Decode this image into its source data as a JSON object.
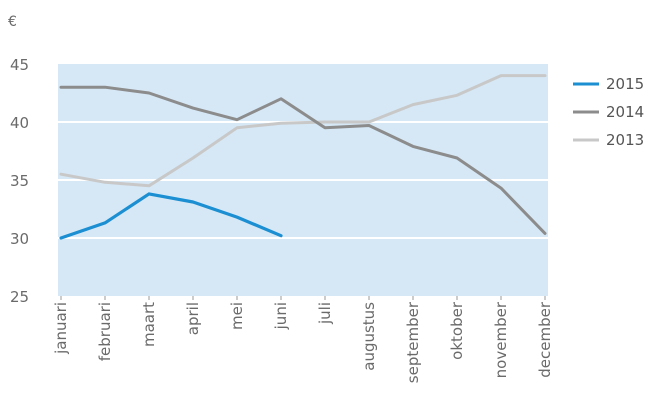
{
  "chart_data": {
    "type": "line",
    "unit": "€",
    "categories": [
      "januari",
      "februari",
      "maart",
      "april",
      "mei",
      "juni",
      "juli",
      "augustus",
      "september",
      "oktober",
      "november",
      "december"
    ],
    "ylim": [
      25,
      45
    ],
    "yticks": [
      "25",
      "30",
      "35",
      "40",
      "45"
    ],
    "grid": true,
    "legend_position": "right",
    "plot_background": "#d6e8f6",
    "series": [
      {
        "name": "2015",
        "color": "#1b8fd2",
        "values": [
          30.0,
          31.3,
          33.8,
          33.1,
          31.8,
          30.2,
          null,
          null,
          null,
          null,
          null,
          null
        ]
      },
      {
        "name": "2014",
        "color": "#8c8c8c",
        "values": [
          43.0,
          43.0,
          42.5,
          41.2,
          40.2,
          42.0,
          39.5,
          39.7,
          37.9,
          36.9,
          34.3,
          30.4
        ]
      },
      {
        "name": "2013",
        "color": "#c8c8c8",
        "values": [
          35.5,
          34.8,
          34.5,
          36.9,
          39.5,
          39.9,
          40.0,
          40.0,
          41.5,
          42.3,
          44.0,
          44.0
        ]
      }
    ]
  }
}
